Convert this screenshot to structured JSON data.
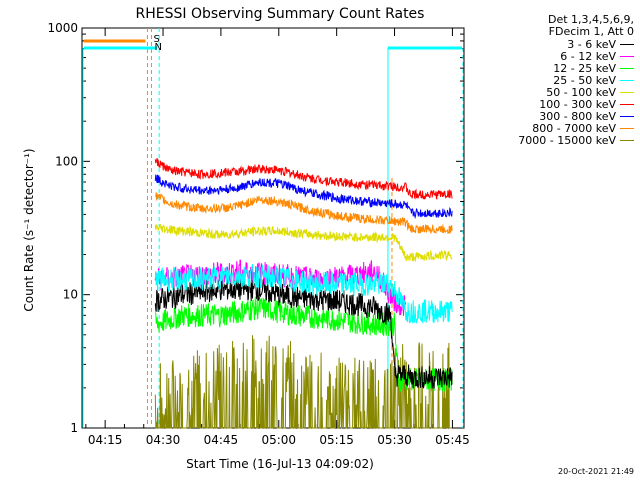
{
  "chart_data": {
    "type": "line",
    "title": "RHESSI Observing Summary Count Rates",
    "xlabel": "Start Time (16-Jul-13 04:09:02)",
    "ylabel": "Count Rate (s⁻¹ detector⁻¹)",
    "y_scale": "log",
    "ylim": [
      1,
      1000
    ],
    "y_ticks": [
      {
        "value": 1,
        "label": "1"
      },
      {
        "value": 10,
        "label": "10"
      },
      {
        "value": 100,
        "label": "100"
      },
      {
        "value": 1000,
        "label": "1000"
      }
    ],
    "xlim": [
      "04:09",
      "05:48"
    ],
    "x_ticks": [
      "04:15",
      "04:30",
      "04:45",
      "05:00",
      "05:15",
      "05:30",
      "05:45"
    ],
    "legend": {
      "placement": "right",
      "header": [
        "Det 1,3,4,5,6,9,",
        "FDecim 1, Att 0"
      ]
    },
    "series": [
      {
        "name": "3 - 6 keV",
        "color": "#000000",
        "points": [
          [
            "04:28",
            9
          ],
          [
            "04:35",
            10
          ],
          [
            "04:45",
            11
          ],
          [
            "04:55",
            11
          ],
          [
            "05:00",
            10
          ],
          [
            "05:05",
            9.5
          ],
          [
            "05:15",
            9
          ],
          [
            "05:25",
            8
          ],
          [
            "05:29",
            7
          ],
          [
            "05:30",
            2.5
          ],
          [
            "05:33",
            2.5
          ],
          [
            "05:34",
            2.4
          ],
          [
            "05:45",
            2.4
          ]
        ]
      },
      {
        "name": "6 - 12 keV",
        "color": "#ff00ff",
        "points": [
          [
            "04:28",
            13
          ],
          [
            "04:40",
            14
          ],
          [
            "04:50",
            15
          ],
          [
            "05:00",
            14
          ],
          [
            "05:10",
            13
          ],
          [
            "05:20",
            14
          ],
          [
            "05:25",
            15
          ],
          [
            "05:28",
            11
          ],
          [
            "05:30",
            9
          ],
          [
            "05:33",
            8
          ]
        ]
      },
      {
        "name": "12 - 25 keV",
        "color": "#00ff00",
        "points": [
          [
            "04:28",
            6
          ],
          [
            "04:35",
            7
          ],
          [
            "04:45",
            7
          ],
          [
            "04:55",
            8
          ],
          [
            "05:05",
            7
          ],
          [
            "05:15",
            6.5
          ],
          [
            "05:25",
            6
          ],
          [
            "05:30",
            6
          ],
          [
            "05:31",
            2.3
          ],
          [
            "05:45",
            2.3
          ]
        ]
      },
      {
        "name": "25 - 50 keV",
        "color": "#00ffff",
        "points": [
          [
            "04:28",
            13
          ],
          [
            "04:40",
            13
          ],
          [
            "04:50",
            14
          ],
          [
            "05:00",
            13.5
          ],
          [
            "05:10",
            12
          ],
          [
            "05:20",
            12
          ],
          [
            "05:28",
            12
          ],
          [
            "05:30",
            11
          ],
          [
            "05:33",
            7.5
          ],
          [
            "05:45",
            7.5
          ]
        ]
      },
      {
        "name": "50 - 100 keV",
        "color": "#dddd00",
        "points": [
          [
            "04:28",
            32
          ],
          [
            "04:35",
            30
          ],
          [
            "04:45",
            28
          ],
          [
            "04:55",
            30
          ],
          [
            "05:00",
            30
          ],
          [
            "05:10",
            28
          ],
          [
            "05:20",
            27
          ],
          [
            "05:30",
            27
          ],
          [
            "05:33",
            19
          ],
          [
            "05:45",
            20
          ]
        ]
      },
      {
        "name": "100 - 300 keV",
        "color": "#ff0000",
        "points": [
          [
            "04:28",
            100
          ],
          [
            "04:32",
            85
          ],
          [
            "04:40",
            80
          ],
          [
            "04:50",
            84
          ],
          [
            "04:55",
            88
          ],
          [
            "05:00",
            86
          ],
          [
            "05:08",
            75
          ],
          [
            "05:15",
            70
          ],
          [
            "05:22",
            67
          ],
          [
            "05:33",
            64
          ],
          [
            "05:34",
            56
          ],
          [
            "05:45",
            57
          ]
        ]
      },
      {
        "name": "300 - 800 keV",
        "color": "#0000ff",
        "points": [
          [
            "04:28",
            75
          ],
          [
            "04:32",
            65
          ],
          [
            "04:40",
            60
          ],
          [
            "04:48",
            62
          ],
          [
            "04:55",
            70
          ],
          [
            "05:00",
            68
          ],
          [
            "05:08",
            58
          ],
          [
            "05:15",
            53
          ],
          [
            "05:22",
            50
          ],
          [
            "05:33",
            47
          ],
          [
            "05:34",
            41
          ],
          [
            "05:45",
            41
          ]
        ]
      },
      {
        "name": "800 - 7000 keV",
        "color": "#ff8800",
        "points": [
          [
            "04:28",
            55
          ],
          [
            "04:32",
            48
          ],
          [
            "04:40",
            44
          ],
          [
            "04:48",
            45
          ],
          [
            "04:55",
            52
          ],
          [
            "05:00",
            50
          ],
          [
            "05:08",
            43
          ],
          [
            "05:15",
            39
          ],
          [
            "05:22",
            37
          ],
          [
            "05:33",
            35
          ],
          [
            "05:34",
            31
          ],
          [
            "05:45",
            31
          ]
        ]
      },
      {
        "name": "7000 - 15000 keV",
        "color": "#888800",
        "points": [
          [
            "04:28",
            1.8
          ],
          [
            "04:45",
            2.5
          ],
          [
            "04:55",
            3
          ],
          [
            "05:05",
            2.5
          ],
          [
            "05:15",
            2
          ],
          [
            "05:25",
            2
          ],
          [
            "05:33",
            2.5
          ],
          [
            "05:45",
            2.5
          ]
        ]
      }
    ],
    "markers": [
      {
        "label": "S",
        "color": "#ff8800"
      },
      {
        "label": "N",
        "color": "#00ffff"
      }
    ],
    "timestamp": "20-Oct-2021 21:49"
  }
}
